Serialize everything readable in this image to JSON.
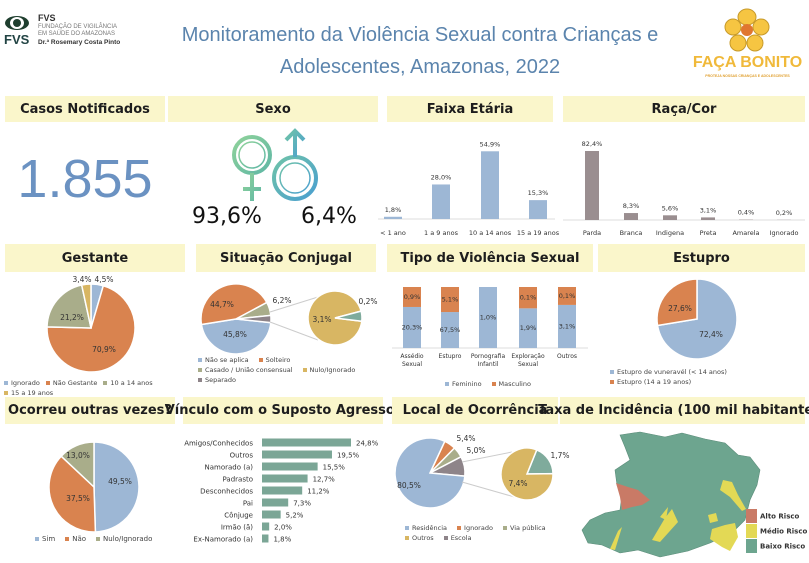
{
  "header": {
    "title_line1": "Monitoramento da Violência Sexual contra Crianças e",
    "title_line2": "Adolescentes, Amazonas, 2022",
    "fvs_logo": {
      "abbr": "FVS",
      "mark": "FVS",
      "line1": "FUNDAÇÃO DE VIGILÂNCIA",
      "line2": "EM SAÚDE DO AMAZONAS",
      "line3": "Dr.ª Rosemary Costa Pinto"
    },
    "faca_bonito_logo": {
      "text": "FAÇA BONITO",
      "tagline": "PROTEJA NOSSAS CRIANÇAS E ADOLESCENTES"
    }
  },
  "colors": {
    "header_bg": "#faf6cb",
    "title": "#5b84ad",
    "blue": "#9db7d5",
    "orange": "#d9834f",
    "olive": "#a9ad8a",
    "gold": "#d8b663",
    "gray": "#8e8489",
    "teal": "#7fab9c",
    "race_bar": "#9a8e90",
    "link_bar": "#7ba696"
  },
  "casos": {
    "title": "Casos Notificados",
    "value": "1.855"
  },
  "sexo": {
    "title": "Sexo",
    "feminino": "93,6%",
    "masculino": "6,4%",
    "icons": [
      "female-symbol-icon",
      "male-symbol-icon"
    ]
  },
  "chart_data": [
    {
      "id": "faixa",
      "type": "bar",
      "title": "Faixa Etária",
      "categories": [
        "< 1 ano",
        "1 a 9 anos",
        "10 a 14 anos",
        "15 a 19 anos"
      ],
      "values": [
        1.8,
        28.0,
        54.9,
        15.3
      ],
      "labels": [
        "1,8%",
        "28,0%",
        "54,9%",
        "15,3%"
      ],
      "color": "#9db7d5"
    },
    {
      "id": "raca",
      "type": "bar",
      "title": "Raça/Cor",
      "categories": [
        "Parda",
        "Branca",
        "Indigena",
        "Preta",
        "Amarela",
        "Ignorado"
      ],
      "values": [
        82.4,
        8.3,
        5.6,
        3.1,
        0.4,
        0.2
      ],
      "labels": [
        "82,4%",
        "8,3%",
        "5,6%",
        "3,1%",
        "0,4%",
        "0,2%"
      ],
      "color": "#9a8e90"
    },
    {
      "id": "gestante",
      "type": "pie",
      "title": "Gestante",
      "categories": [
        "Ignorado",
        "Não Gestante",
        "10 a 14 anos",
        "15 a 19 anos"
      ],
      "values": [
        4.5,
        70.9,
        21.2,
        3.4
      ],
      "labels": [
        "4,5%",
        "70,9%",
        "21,2%",
        "3,4%"
      ],
      "colors": [
        "#9db7d5",
        "#d9834f",
        "#a9ad8a",
        "#d8b663"
      ]
    },
    {
      "id": "situacao",
      "type": "pie",
      "title": "Situação Conjugal",
      "categories": [
        "Não se aplica",
        "Solteiro",
        "Casado / União consensual",
        "Nulo/Ignorado",
        "Separado"
      ],
      "legend_colors": [
        "#9db7d5",
        "#d9834f",
        "#a9ad8a",
        "#d8b663",
        "#8e8489"
      ],
      "values": [
        45.8,
        44.7,
        6.2,
        3.3
      ],
      "labels": [
        "45,8%",
        "44,7%",
        "6,2%",
        ""
      ],
      "colors": [
        "#9db7d5",
        "#d9834f",
        "#a9ad8a",
        "#8e8489"
      ],
      "sub_values": [
        3.1,
        0.2
      ],
      "sub_labels": [
        "3,1%",
        "0,2%"
      ],
      "sub_colors": [
        "#d8b663",
        "#7fab9c"
      ]
    },
    {
      "id": "tipo",
      "type": "bar",
      "stacked": true,
      "title": "Tipo de Violência Sexual",
      "categories": [
        "Assédio Sexual",
        "Estupro",
        "Pornografia Infantil",
        "Exploração Sexual",
        "Outros"
      ],
      "series": [
        {
          "name": "Feminino",
          "values": [
            20.3,
            67.5,
            1.0,
            1.9,
            3.1
          ],
          "labels": [
            "20,3%",
            "67,5%",
            "1,0%",
            "1,9%",
            "3,1%"
          ],
          "color": "#9db7d5"
        },
        {
          "name": "Masculino",
          "values": [
            0.9,
            5.1,
            0,
            0.1,
            0.1
          ],
          "labels": [
            "0,9%",
            "5,1%",
            "",
            "0,1%",
            "0,1%"
          ],
          "color": "#d9834f"
        }
      ],
      "legend": "bottom"
    },
    {
      "id": "estupro",
      "type": "pie",
      "title": "Estupro",
      "categories": [
        "Estupro de vuneravél (< 14 anos)",
        "Estupro (14 a 19 anos)"
      ],
      "values": [
        72.4,
        27.6
      ],
      "labels": [
        "72,4%",
        "27,6%"
      ],
      "colors": [
        "#9db7d5",
        "#d9834f"
      ]
    },
    {
      "id": "ocorreu",
      "type": "pie",
      "title": "Ocorreu outras vezes?",
      "categories": [
        "Sim",
        "Não",
        "Nulo/Ignorado"
      ],
      "values": [
        49.5,
        37.5,
        13.0
      ],
      "labels": [
        "49,5%",
        "37,5%",
        "13,0%"
      ],
      "colors": [
        "#9db7d5",
        "#d9834f",
        "#a9ad8a"
      ]
    },
    {
      "id": "vinculo",
      "type": "bar",
      "orientation": "horizontal",
      "title": "Vínculo com o Suposto Agressor",
      "categories": [
        "Amigos/Conhecidos",
        "Outros",
        "Namorado (a)",
        "Padrasto",
        "Desconhecidos",
        "Pai",
        "Cônjuge",
        "Irmão (ã)",
        "Ex-Namorado (a)"
      ],
      "values": [
        24.8,
        19.5,
        15.5,
        12.7,
        11.2,
        7.3,
        5.2,
        2.0,
        1.8
      ],
      "labels": [
        "24,8%",
        "19,5%",
        "15,5%",
        "12,7%",
        "11,2%",
        "7,3%",
        "5,2%",
        "2,0%",
        "1,8%"
      ],
      "color": "#7ba696"
    },
    {
      "id": "local",
      "type": "pie",
      "title": "Local de Ocorrência",
      "categories": [
        "Residência",
        "Ignorado",
        "Via pública",
        "Outros",
        "Escola"
      ],
      "legend_colors": [
        "#9db7d5",
        "#d9834f",
        "#a9ad8a",
        "#d8b663",
        "#8e8489"
      ],
      "values": [
        5.4,
        5.0,
        9.1,
        80.5
      ],
      "labels": [
        "5,4%",
        "5,0%",
        "",
        "80,5%"
      ],
      "colors": [
        "#d9834f",
        "#a9ad8a",
        "#8e8489",
        "#9db7d5"
      ],
      "sub_values": [
        1.7,
        7.4
      ],
      "sub_labels": [
        "1,7%",
        "7,4%"
      ],
      "sub_colors": [
        "#7fab9c",
        "#d8b663"
      ]
    }
  ],
  "mapa": {
    "title": "Taxa de Incidência (100 mil habitantes)",
    "legend": [
      {
        "label": "Alto Risco",
        "color": "#c97a66"
      },
      {
        "label": "Médio Risco",
        "color": "#e3d955"
      },
      {
        "label": "Baixo Risco",
        "color": "#6da58f"
      }
    ]
  }
}
